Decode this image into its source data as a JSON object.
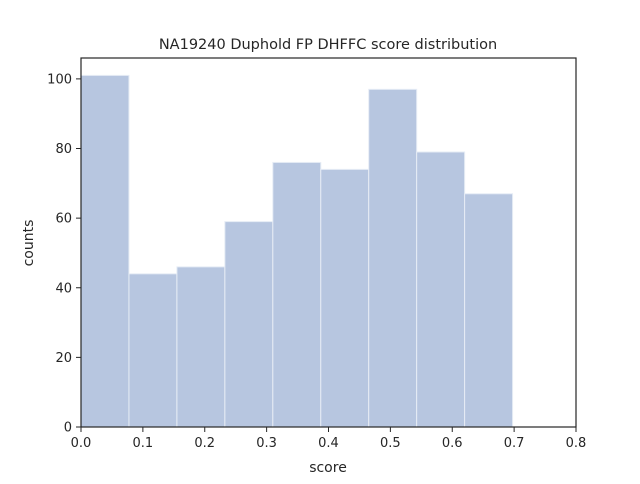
{
  "chart_data": {
    "type": "bar",
    "title": "NA19240 Duphold FP DHFFC score distribution",
    "xlabel": "score",
    "ylabel": "counts",
    "xlim": [
      0,
      0.8
    ],
    "ylim": [
      0,
      106
    ],
    "xticks": [
      "0.0",
      "0.1",
      "0.2",
      "0.3",
      "0.4",
      "0.5",
      "0.6",
      "0.7",
      "0.8"
    ],
    "yticks": [
      "0",
      "20",
      "40",
      "60",
      "80",
      "100"
    ],
    "bins": [
      {
        "x0": 0.0,
        "x1": 0.0775,
        "count": 101
      },
      {
        "x0": 0.0775,
        "x1": 0.155,
        "count": 44
      },
      {
        "x0": 0.155,
        "x1": 0.2325,
        "count": 46
      },
      {
        "x0": 0.2325,
        "x1": 0.31,
        "count": 59
      },
      {
        "x0": 0.31,
        "x1": 0.3875,
        "count": 76
      },
      {
        "x0": 0.3875,
        "x1": 0.465,
        "count": 74
      },
      {
        "x0": 0.465,
        "x1": 0.5425,
        "count": 97
      },
      {
        "x0": 0.5425,
        "x1": 0.62,
        "count": 79
      },
      {
        "x0": 0.62,
        "x1": 0.6975,
        "count": 67
      }
    ],
    "bar_color": "#b7c6e0",
    "bar_edge_color": "#e6ecf5",
    "grid": false,
    "legend": "none"
  }
}
